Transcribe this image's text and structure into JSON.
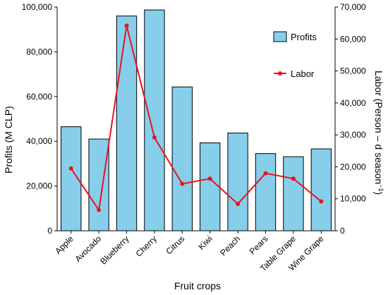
{
  "chart_data": {
    "type": "bar",
    "categories": [
      "Apple",
      "Avocado",
      "Blueberry",
      "Cherry",
      "Citrus",
      "Kiwi",
      "Peach",
      "Pears",
      "Table Grape",
      "Wine Grape"
    ],
    "xlabel": "Fruit crops",
    "ylabel": "Profits (M CLP)",
    "y2label": "Labor (Person – d season",
    "y2label_superscript": "−1",
    "y2label_close": ")",
    "ylim": [
      0,
      100000
    ],
    "y2lim": [
      0,
      70000
    ],
    "yticks": [
      "0",
      "20,000",
      "40,000",
      "60,000",
      "80,000",
      "100,000"
    ],
    "yticks_values": [
      0,
      20000,
      40000,
      60000,
      80000,
      100000
    ],
    "y2ticks": [
      "0",
      "10,000",
      "20,000",
      "30,000",
      "40,000",
      "50,000",
      "60,000",
      "70,000"
    ],
    "y2ticks_values": [
      0,
      10000,
      20000,
      30000,
      40000,
      50000,
      60000,
      70000
    ],
    "grid": false,
    "legend_position": "top-right",
    "series": [
      {
        "name": "Profits",
        "type": "bar",
        "axis": "left",
        "color": "#87CEEB",
        "values": [
          46500,
          41000,
          96000,
          98700,
          64300,
          39300,
          43700,
          34500,
          33100,
          36600
        ]
      },
      {
        "name": "Labor",
        "type": "line",
        "axis": "right",
        "color": "#E8141C",
        "values": [
          19500,
          6500,
          64200,
          29200,
          14700,
          16300,
          8400,
          18000,
          16300,
          9200
        ]
      }
    ]
  }
}
